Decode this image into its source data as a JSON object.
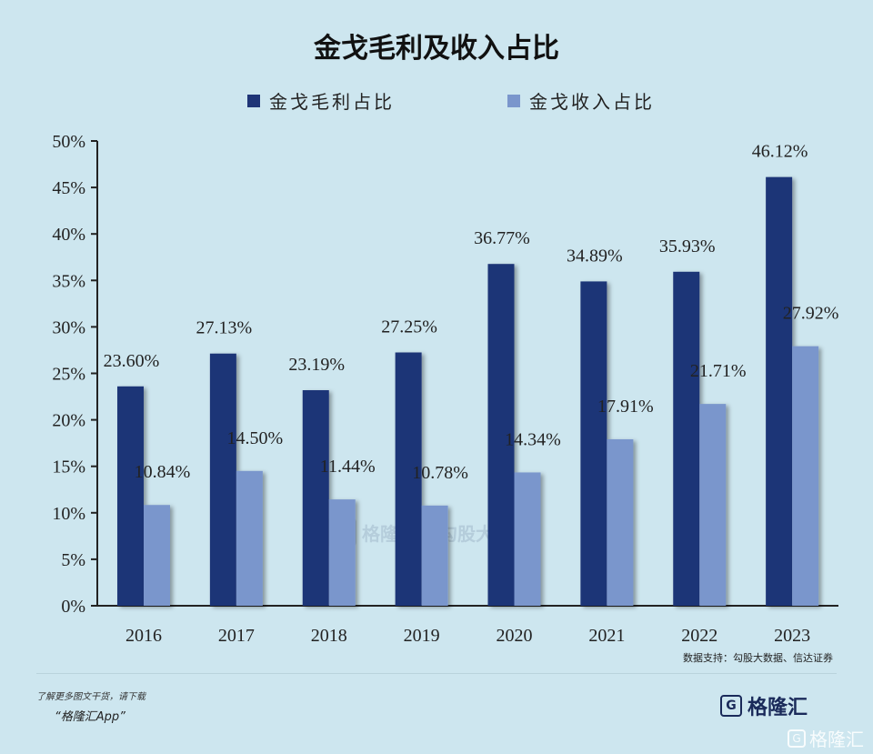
{
  "title": "金戈毛利及收入占比",
  "colors": {
    "series1": "#1f3577",
    "series2": "#7a96cc",
    "background": "#cde6ef"
  },
  "chart_data": {
    "type": "bar",
    "title": "金戈毛利及收入占比",
    "categories": [
      "2016",
      "2017",
      "2018",
      "2019",
      "2020",
      "2021",
      "2022",
      "2023"
    ],
    "series": [
      {
        "name": "金戈毛利占比",
        "values": [
          23.6,
          27.13,
          23.19,
          27.25,
          36.77,
          34.89,
          35.93,
          46.12
        ],
        "labels": [
          "23.60%",
          "27.13%",
          "23.19%",
          "27.25%",
          "36.77%",
          "34.89%",
          "35.93%",
          "46.12%"
        ]
      },
      {
        "name": "金戈收入占比",
        "values": [
          10.84,
          14.5,
          11.44,
          10.78,
          14.34,
          17.91,
          21.71,
          27.92
        ],
        "labels": [
          "10.84%",
          "14.50%",
          "11.44%",
          "10.78%",
          "14.34%",
          "17.91%",
          "21.71%",
          "27.92%"
        ]
      }
    ],
    "yticks": [
      "0%",
      "5%",
      "10%",
      "15%",
      "20%",
      "25%",
      "30%",
      "35%",
      "40%",
      "45%",
      "50%"
    ],
    "ylim": [
      0,
      50
    ],
    "legend_position": "top",
    "grid": false
  },
  "source": "数据支持：勾股大数据、信达证券",
  "footer": {
    "note": "了解更多图文干货，请下载",
    "app": "“格隆汇App”"
  },
  "brand": {
    "icon": "G",
    "name": "格隆汇"
  },
  "watermark": {
    "icon": "G",
    "left": "格隆汇",
    "right": "勾股大数据",
    "corner": "格隆汇"
  }
}
